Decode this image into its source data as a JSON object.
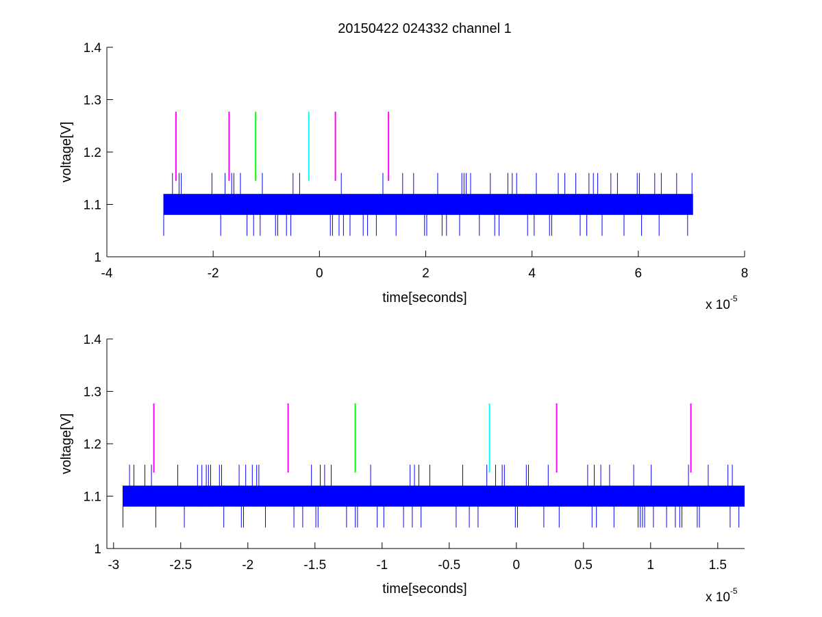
{
  "chart_data": [
    {
      "type": "line",
      "title": "20150422 024332 channel 1",
      "xlabel": "time[seconds]",
      "ylabel": "voltage[V]",
      "x_exponent_base": "x 10",
      "x_exponent_power": "-5",
      "xlim": [
        -4,
        8
      ],
      "ylim": [
        1,
        1.4
      ],
      "x_ticks": [
        -4,
        -2,
        0,
        2,
        4,
        6,
        8
      ],
      "x_tick_labels": [
        "-4",
        "-2",
        "0",
        "2",
        "4",
        "6",
        "8"
      ],
      "y_ticks": [
        1,
        1.1,
        1.2,
        1.3,
        1.4
      ],
      "y_tick_labels": [
        "1",
        "1.1",
        "1.2",
        "1.3",
        "1.4"
      ],
      "grid": false,
      "signal": {
        "color": "#0000ff",
        "x_range": [
          -2.93,
          7.03
        ],
        "band": [
          1.08,
          1.12
        ],
        "spike_high": 1.16,
        "spike_low": 1.04
      },
      "markers": [
        {
          "x": -2.7,
          "y0": 1.145,
          "y1": 1.277,
          "color": "#ff00ff"
        },
        {
          "x": -1.7,
          "y0": 1.145,
          "y1": 1.277,
          "color": "#ff00ff"
        },
        {
          "x": -1.2,
          "y0": 1.145,
          "y1": 1.277,
          "color": "#00ff00"
        },
        {
          "x": -0.2,
          "y0": 1.145,
          "y1": 1.277,
          "color": "#00ffff"
        },
        {
          "x": 0.3,
          "y0": 1.145,
          "y1": 1.277,
          "color": "#ff00ff"
        },
        {
          "x": 1.3,
          "y0": 1.145,
          "y1": 1.277,
          "color": "#ff00ff"
        }
      ]
    },
    {
      "type": "line",
      "title": "",
      "xlabel": "time[seconds]",
      "ylabel": "voltage[V]",
      "x_exponent_base": "x 10",
      "x_exponent_power": "-5",
      "xlim": [
        -3.05,
        1.7
      ],
      "ylim": [
        1,
        1.4
      ],
      "x_ticks": [
        -3,
        -2.5,
        -2,
        -1.5,
        -1,
        -0.5,
        0,
        0.5,
        1,
        1.5
      ],
      "x_tick_labels": [
        "-3",
        "-2.5",
        "-2",
        "-1.5",
        "-1",
        "-0.5",
        "0",
        "0.5",
        "1",
        "1.5"
      ],
      "y_ticks": [
        1,
        1.1,
        1.2,
        1.3,
        1.4
      ],
      "y_tick_labels": [
        "1",
        "1.1",
        "1.2",
        "1.3",
        "1.4"
      ],
      "grid": false,
      "signal": {
        "color": "#0000ff",
        "x_range": [
          -2.93,
          1.7
        ],
        "band": [
          1.08,
          1.12
        ],
        "spike_high": 1.16,
        "spike_low": 1.04
      },
      "markers": [
        {
          "x": -2.7,
          "y0": 1.145,
          "y1": 1.277,
          "color": "#ff00ff"
        },
        {
          "x": -1.7,
          "y0": 1.145,
          "y1": 1.277,
          "color": "#ff00ff"
        },
        {
          "x": -1.2,
          "y0": 1.145,
          "y1": 1.277,
          "color": "#00ff00"
        },
        {
          "x": -0.2,
          "y0": 1.145,
          "y1": 1.277,
          "color": "#00ffff"
        },
        {
          "x": 0.3,
          "y0": 1.145,
          "y1": 1.277,
          "color": "#ff00ff"
        },
        {
          "x": 1.3,
          "y0": 1.145,
          "y1": 1.277,
          "color": "#ff00ff"
        }
      ]
    }
  ]
}
